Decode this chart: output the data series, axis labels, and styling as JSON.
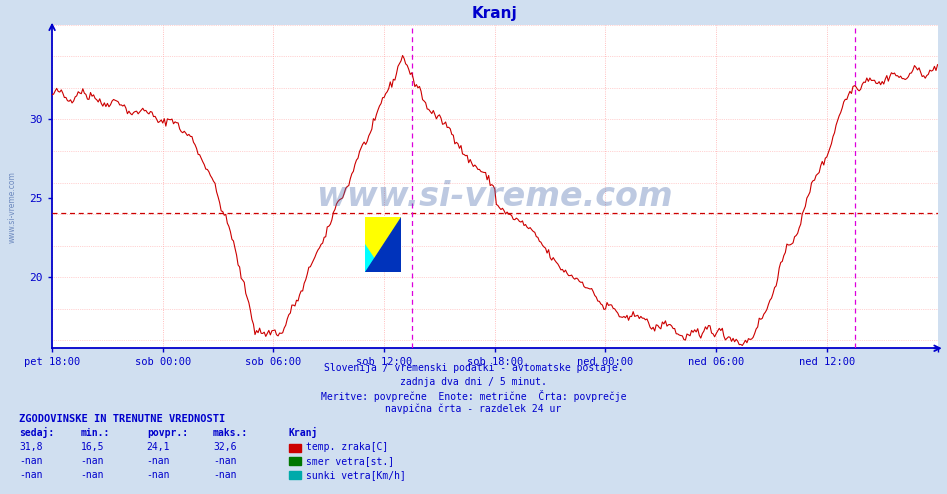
{
  "title": "Kranj",
  "bg_color": "#d0dff0",
  "plot_bg_color": "#ffffff",
  "line_color": "#cc0000",
  "grid_color": "#ffaaaa",
  "avg_line_color": "#cc0000",
  "vline_color": "#dd00dd",
  "axis_color": "#0000cc",
  "tick_color": "#0000cc",
  "title_color": "#0000cc",
  "text_color": "#0000cc",
  "yticks": [
    20,
    25,
    30
  ],
  "ymin": 15.5,
  "ymax": 36.0,
  "avg_value": 24.1,
  "x_tick_hours": [
    0,
    6,
    12,
    18,
    24,
    30,
    36,
    42,
    48
  ],
  "x_labels": [
    "pet 18:00",
    "sob 00:00",
    "sob 06:00",
    "sob 12:00",
    "sob 18:00",
    "ned 00:00",
    "ned 06:00",
    "ned 12:00",
    ""
  ],
  "vline_hours": [
    19.5,
    43.5
  ],
  "subtitle1": "Slovenija / vremenski podatki - avtomatske postaje.",
  "subtitle2": "zadnja dva dni / 5 minut.",
  "subtitle3": "Meritve: povprečne  Enote: metrične  Črta: povprečje",
  "subtitle4": "navpična črta - razdelek 24 ur",
  "table_header": "ZGODOVINSKE IN TRENUTNE VREDNOSTI",
  "col_headers": [
    "sedaj:",
    "min.:",
    "povpr.:",
    "maks.:",
    "Kranj"
  ],
  "row1": [
    "31,8",
    "16,5",
    "24,1",
    "32,6",
    "temp. zraka[C]"
  ],
  "row2": [
    "-nan",
    "-nan",
    "-nan",
    "-nan",
    "smer vetra[st.]"
  ],
  "row3": [
    "-nan",
    "-nan",
    "-nan",
    "-nan",
    "sunki vetra[Km/h]"
  ],
  "legend_colors": [
    "#cc0000",
    "#007700",
    "#00aaaa"
  ],
  "watermark": "www.si-vreme.com",
  "sidewatermark": "www.si-vreme.com"
}
